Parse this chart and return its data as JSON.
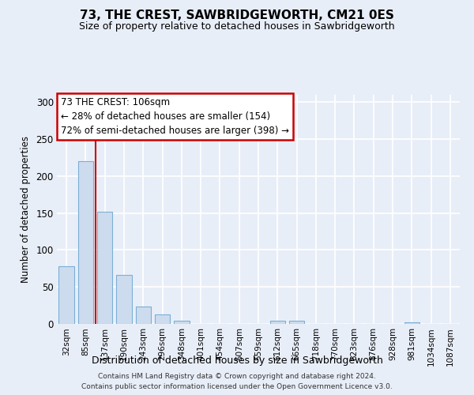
{
  "title": "73, THE CREST, SAWBRIDGEWORTH, CM21 0ES",
  "subtitle": "Size of property relative to detached houses in Sawbridgeworth",
  "xlabel": "Distribution of detached houses by size in Sawbridgeworth",
  "ylabel": "Number of detached properties",
  "categories": [
    "32sqm",
    "85sqm",
    "137sqm",
    "190sqm",
    "243sqm",
    "296sqm",
    "348sqm",
    "401sqm",
    "454sqm",
    "507sqm",
    "559sqm",
    "612sqm",
    "665sqm",
    "718sqm",
    "770sqm",
    "823sqm",
    "876sqm",
    "928sqm",
    "981sqm",
    "1034sqm",
    "1087sqm"
  ],
  "values": [
    78,
    220,
    152,
    66,
    24,
    13,
    4,
    0,
    0,
    0,
    0,
    4,
    4,
    0,
    0,
    0,
    0,
    0,
    2,
    0,
    0
  ],
  "bar_color": "#ccdcee",
  "bar_edge_color": "#7bafd4",
  "red_line_x": 1.5,
  "annotation_text": "73 THE CREST: 106sqm\n← 28% of detached houses are smaller (154)\n72% of semi-detached houses are larger (398) →",
  "annotation_box_color": "white",
  "annotation_box_edge_color": "#cc0000",
  "ylim": [
    0,
    310
  ],
  "yticks": [
    0,
    50,
    100,
    150,
    200,
    250,
    300
  ],
  "footer_line1": "Contains HM Land Registry data © Crown copyright and database right 2024.",
  "footer_line2": "Contains public sector information licensed under the Open Government Licence v3.0.",
  "background_color": "#e8eef8",
  "grid_color": "white"
}
